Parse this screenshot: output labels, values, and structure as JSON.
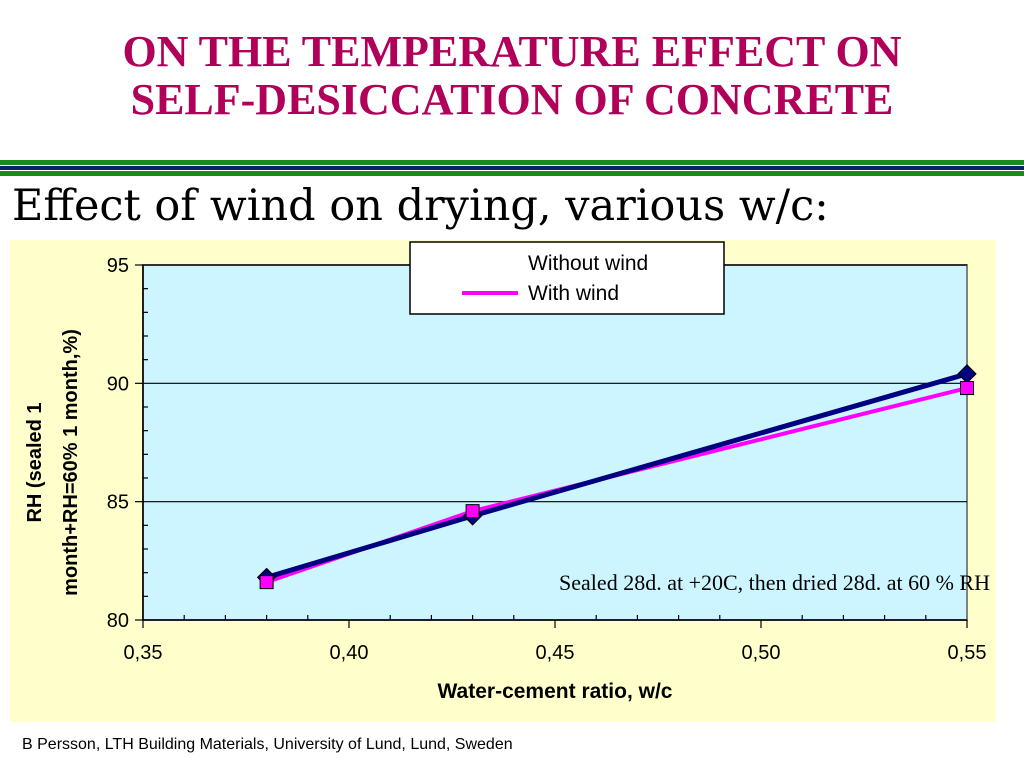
{
  "header": {
    "title_line1": "ON THE TEMPERATURE EFFECT ON",
    "title_line2": "SELF-DESICCATION OF CONCRETE",
    "subtitle": "Effect of wind on drying, various w/c:"
  },
  "footer": {
    "text": "B Persson, LTH Building Materials, University of Lund, Lund, Sweden"
  },
  "colors": {
    "title": "#b0005a",
    "plot_bg": "#ccf5ff",
    "panel_bg": "#ffffcc",
    "without_wind": "#000080",
    "with_wind": "#ff00ff"
  },
  "chart_data": {
    "type": "line",
    "title": "",
    "xlabel": "Water-cement ratio, w/c",
    "ylabel_line1": "RH (sealed 1",
    "ylabel_line2": "month+RH=60% 1 month,%)",
    "xlim": [
      0.35,
      0.55
    ],
    "ylim": [
      80,
      95
    ],
    "x_ticks": [
      "0,35",
      "0,40",
      "0,45",
      "0,50",
      "0,55"
    ],
    "y_ticks": [
      "95",
      "90",
      "85",
      "80"
    ],
    "grid": "horizontal major lines",
    "legend_position": "top-center",
    "annotation": "Sealed 28d. at +20C, then dried 28d. at 60 % RH",
    "series": [
      {
        "name": "Without wind",
        "marker": "diamond",
        "x": [
          0.38,
          0.43,
          0.55
        ],
        "values": [
          81.8,
          84.4,
          90.4
        ]
      },
      {
        "name": "With wind",
        "marker": "square",
        "x": [
          0.38,
          0.43,
          0.55
        ],
        "values": [
          81.6,
          84.6,
          89.8
        ]
      }
    ]
  }
}
